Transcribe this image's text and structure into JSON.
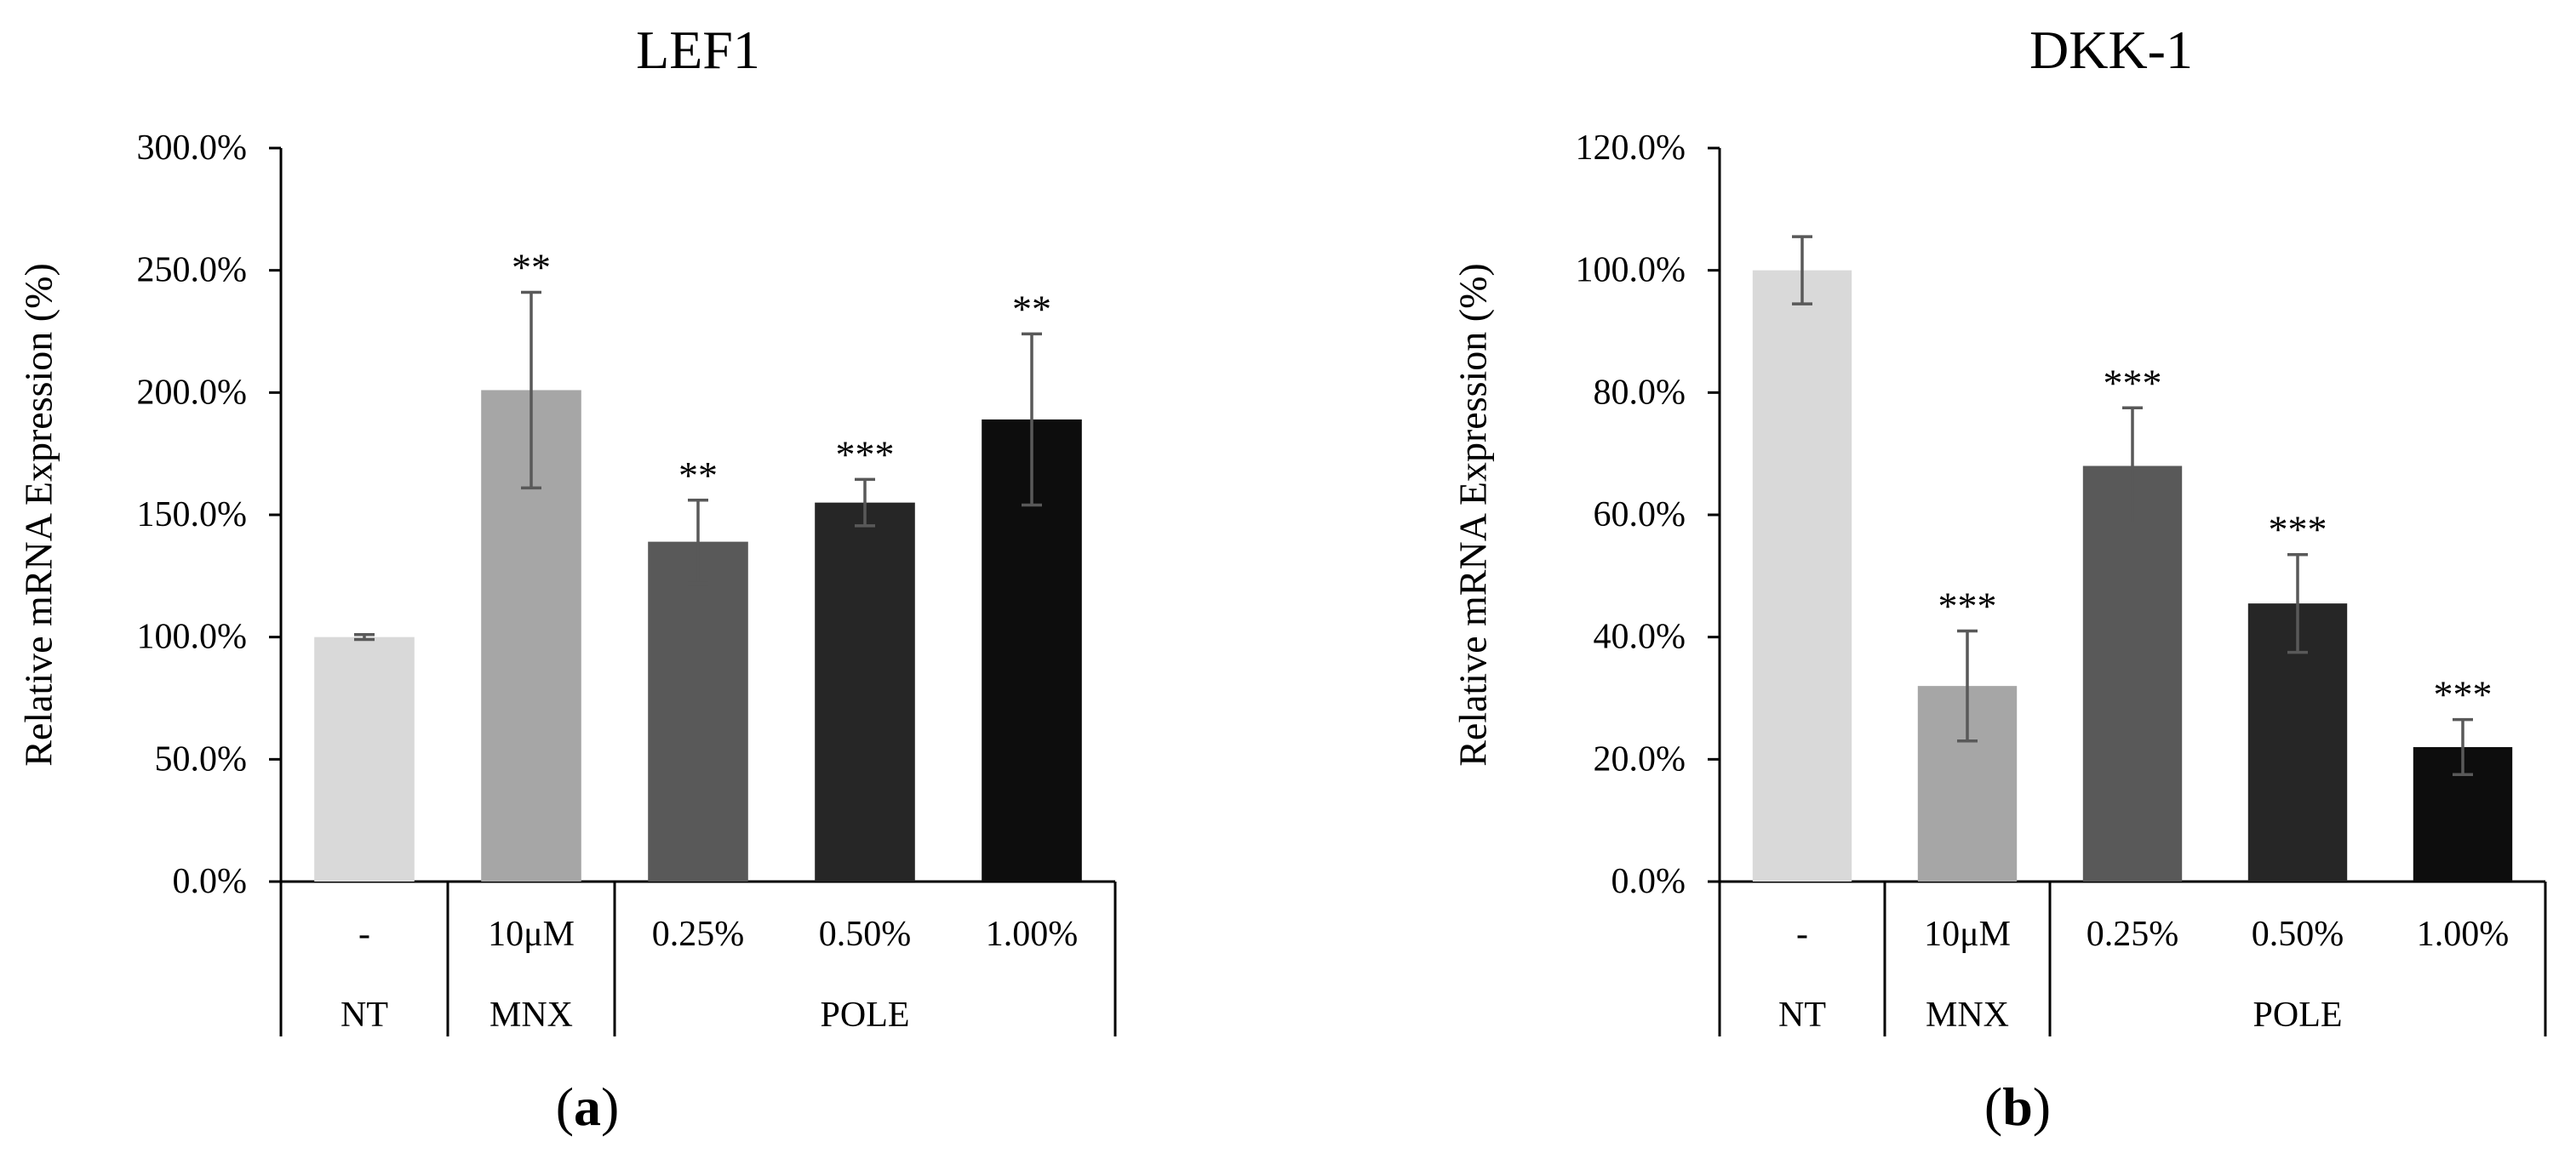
{
  "chart_data": [
    {
      "type": "bar",
      "panel_label": "(a)",
      "title": "LEF1",
      "ylabel": "Relative  mRNA Expression (%)",
      "xlabel": "",
      "ylim": [
        0,
        300
      ],
      "y_ticks": [
        0,
        50,
        100,
        150,
        200,
        250,
        300
      ],
      "y_tick_labels": [
        "0.0%",
        "50.0%",
        "100.0%",
        "150.0%",
        "200.0%",
        "250.0%",
        "300.0%"
      ],
      "categories": [
        "-",
        "10μM",
        "0.25%",
        "0.50%",
        "1.00%"
      ],
      "groups": [
        {
          "label": "NT",
          "span": [
            0,
            0
          ]
        },
        {
          "label": "MNX",
          "span": [
            1,
            1
          ]
        },
        {
          "label": "POLE",
          "span": [
            2,
            4
          ]
        }
      ],
      "values": [
        100,
        201,
        139,
        155,
        189
      ],
      "errors": [
        1,
        40,
        17,
        9.5,
        35
      ],
      "significance": [
        "",
        "**",
        "**",
        "***",
        "**"
      ],
      "bar_colors": [
        "#d9d9d9",
        "#a6a6a6",
        "#595959",
        "#262626",
        "#0d0d0d"
      ],
      "grid": false,
      "legend": "none"
    },
    {
      "type": "bar",
      "panel_label": "(b)",
      "title": "DKK-1",
      "ylabel": "Relative  mRNA Expression (%)",
      "xlabel": "",
      "ylim": [
        0,
        120
      ],
      "y_ticks": [
        0,
        20,
        40,
        60,
        80,
        100,
        120
      ],
      "y_tick_labels": [
        "0.0%",
        "20.0%",
        "40.0%",
        "60.0%",
        "80.0%",
        "100.0%",
        "120.0%"
      ],
      "categories": [
        "-",
        "10μM",
        "0.25%",
        "0.50%",
        "1.00%"
      ],
      "groups": [
        {
          "label": "NT",
          "span": [
            0,
            0
          ]
        },
        {
          "label": "MNX",
          "span": [
            1,
            1
          ]
        },
        {
          "label": "POLE",
          "span": [
            2,
            4
          ]
        }
      ],
      "values": [
        100,
        32,
        68,
        45.5,
        22
      ],
      "errors": [
        5.5,
        9,
        9.5,
        8,
        4.5
      ],
      "significance": [
        "",
        "***",
        "***",
        "***",
        "***"
      ],
      "bar_colors": [
        "#d9d9d9",
        "#a6a6a6",
        "#595959",
        "#262626",
        "#0d0d0d"
      ],
      "grid": false,
      "legend": "none"
    }
  ]
}
